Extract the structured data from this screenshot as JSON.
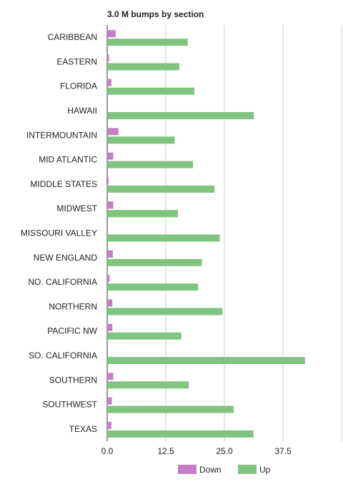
{
  "chart_data": {
    "type": "bar",
    "orientation": "horizontal",
    "title": "3.0 M bumps by section",
    "xlabel": "",
    "ylabel": "",
    "categories": [
      "CARIBBEAN",
      "EASTERN",
      "FLORIDA",
      "HAWAII",
      "INTERMOUNTAIN",
      "MID ATLANTIC",
      "MIDDLE STATES",
      "MIDWEST",
      "MISSOURI VALLEY",
      "NEW ENGLAND",
      "NO. CALIFORNIA",
      "NORTHERN",
      "PACIFIC NW",
      "SO. CALIFORNIA",
      "SOUTHERN",
      "SOUTHWEST",
      "TEXAS"
    ],
    "series": [
      {
        "name": "Down",
        "color": "#c27fc7",
        "values": [
          1.8,
          0.4,
          0.9,
          0,
          2.4,
          1.3,
          0.3,
          1.3,
          0,
          1.2,
          0.5,
          1.1,
          1.1,
          0,
          1.3,
          1.0,
          0.9
        ]
      },
      {
        "name": "Up",
        "color": "#80c480",
        "values": [
          17.2,
          15.4,
          18.6,
          31.3,
          14.4,
          18.3,
          22.9,
          15.1,
          24.0,
          20.2,
          19.4,
          24.6,
          15.8,
          42.2,
          17.4,
          27.0,
          31.2
        ]
      }
    ],
    "xlim": [
      0,
      50
    ],
    "xticks": [
      "0.0",
      "12.5",
      "25.0",
      "37.5"
    ],
    "xtick_values": [
      0,
      12.5,
      25,
      37.5
    ],
    "grid": true,
    "legend_position": "bottom"
  }
}
